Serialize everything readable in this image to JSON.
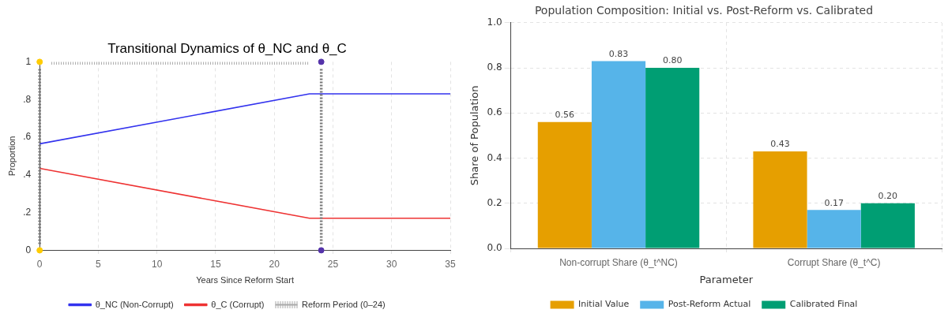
{
  "chart_data": [
    {
      "type": "line",
      "title": "Transitional Dynamics of θ_NC and θ_C",
      "xlabel": "Years Since Reform Start",
      "ylabel": "Proportion",
      "xlim": [
        0,
        35
      ],
      "xticks": [
        0,
        5,
        10,
        15,
        20,
        25,
        30,
        35
      ],
      "ylim": [
        0,
        1
      ],
      "yticks": [
        {
          "value": 0,
          "label": "0"
        },
        {
          "value": 0.2,
          "label": ".2"
        },
        {
          "value": 0.4,
          "label": ".4"
        },
        {
          "value": 0.6,
          "label": ".6"
        },
        {
          "value": 0.8,
          "label": ".8"
        },
        {
          "value": 1,
          "label": "1"
        }
      ],
      "grid": "x",
      "legend": "bottom",
      "series": [
        {
          "name": "θ_NC (Non-Corrupt)",
          "color": "#3333ee",
          "x": [
            0,
            23,
            35
          ],
          "values": [
            0.565,
            0.83,
            0.83
          ]
        },
        {
          "name": "θ_C (Corrupt)",
          "color": "#ee3333",
          "x": [
            0,
            23,
            35
          ],
          "values": [
            0.435,
            0.17,
            0.17
          ]
        },
        {
          "name": "Reform Period (0–24)",
          "color": "#aaaaaa",
          "x": [
            1,
            23
          ],
          "values": [
            1,
            1
          ],
          "line_style": "dotted"
        },
        {
          "type": "scatter",
          "color": "#ffcc00",
          "x": [
            0,
            0
          ],
          "values": [
            0,
            1
          ]
        },
        {
          "type": "scatter",
          "color": "#5533aa",
          "x": [
            24,
            24
          ],
          "values": [
            0,
            1
          ]
        }
      ],
      "ref_lines": [
        {
          "axis": "x",
          "value": 0,
          "color": "#777777",
          "line_style": "dotted"
        },
        {
          "axis": "x",
          "value": 24,
          "color": "#777777",
          "line_style": "dotted"
        }
      ]
    },
    {
      "type": "bar",
      "title": "Population Composition: Initial vs. Post-Reform vs. Calibrated",
      "xlabel": "Parameter",
      "ylabel": "Share of Population",
      "categories": [
        "Non-corrupt Share (θ_t^NC)",
        "Corrupt Share (θ_t^C)"
      ],
      "ylim": [
        0,
        1
      ],
      "yticks": [
        {
          "value": 0,
          "label": "0.0"
        },
        {
          "value": 0.2,
          "label": "0.2"
        },
        {
          "value": 0.4,
          "label": "0.4"
        },
        {
          "value": 0.6,
          "label": "0.6"
        },
        {
          "value": 0.8,
          "label": "0.8"
        },
        {
          "value": 1,
          "label": "1.0"
        }
      ],
      "grid": true,
      "legend": "bottom",
      "series": [
        {
          "name": "Initial Value",
          "color": "#e69f00",
          "values": [
            0.56,
            0.43
          ],
          "value_labels": [
            "0.56",
            "0.43"
          ]
        },
        {
          "name": "Post-Reform Actual",
          "color": "#56b4e9",
          "values": [
            0.83,
            0.17
          ],
          "value_labels": [
            "0.83",
            "0.17"
          ]
        },
        {
          "name": "Calibrated Final",
          "color": "#009e73",
          "values": [
            0.8,
            0.2
          ],
          "value_labels": [
            "0.80",
            "0.20"
          ]
        }
      ]
    }
  ]
}
